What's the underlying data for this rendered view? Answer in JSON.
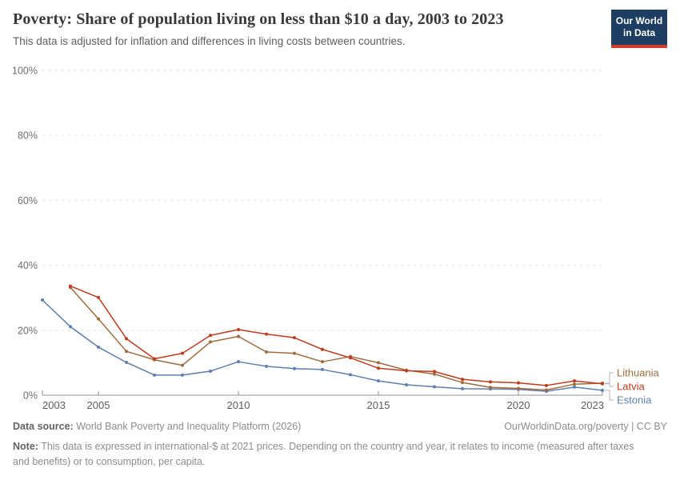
{
  "header": {
    "title": "Poverty: Share of population living on less than $10 a day, 2003 to 2023",
    "subtitle": "This data is adjusted for inflation and differences in living costs between countries.",
    "logo": {
      "line1": "Our World",
      "line2": "in Data",
      "bg_color": "#1d3d63",
      "accent_color": "#d13b2c"
    }
  },
  "chart_data": {
    "type": "line",
    "title": "Poverty: Share of population living on less than $10 a day, 2003 to 2023",
    "x": [
      2003,
      2004,
      2005,
      2006,
      2007,
      2008,
      2009,
      2010,
      2011,
      2012,
      2013,
      2014,
      2015,
      2016,
      2017,
      2018,
      2019,
      2020,
      2021,
      2022,
      2023
    ],
    "x_ticks": [
      2003,
      2005,
      2010,
      2015,
      2020,
      2023
    ],
    "ylim": [
      0,
      100
    ],
    "y_ticks": [
      0,
      20,
      40,
      60,
      80,
      100
    ],
    "y_tick_suffix": "%",
    "grid": "horizontal-dashed",
    "legend_position": "right-end-labels",
    "series": [
      {
        "name": "Estonia",
        "color": "#5E7FAE",
        "values": [
          29.3,
          21.1,
          14.8,
          10.1,
          6.2,
          6.2,
          7.4,
          10.3,
          8.9,
          8.2,
          7.9,
          6.3,
          4.4,
          3.2,
          2.6,
          2.0,
          1.9,
          1.8,
          1.2,
          2.5,
          1.5
        ]
      },
      {
        "name": "Lithuania",
        "color": "#A06B3D",
        "values": [
          null,
          33.2,
          23.5,
          13.5,
          10.9,
          9.2,
          16.4,
          18.1,
          13.3,
          12.9,
          10.3,
          11.9,
          10.0,
          7.7,
          6.5,
          3.9,
          2.4,
          2.1,
          1.6,
          3.4,
          3.7
        ]
      },
      {
        "name": "Latvia",
        "color": "#BF3B1E",
        "values": [
          null,
          33.6,
          30.1,
          17.4,
          11.2,
          12.9,
          18.4,
          20.2,
          18.8,
          17.7,
          14.1,
          11.5,
          8.3,
          7.5,
          7.3,
          4.9,
          4.1,
          3.8,
          3.0,
          4.4,
          3.5
        ]
      }
    ]
  },
  "footer": {
    "data_source_label": "Data source:",
    "data_source": "World Bank Poverty and Inequality Platform (2026)",
    "link": "OurWorldinData.org/poverty | CC BY",
    "note_label": "Note:",
    "note": "This data is expressed in international-$ at 2021 prices. Depending on the country and year, it relates to income (measured after taxes and benefits) or to consumption, per capita."
  }
}
